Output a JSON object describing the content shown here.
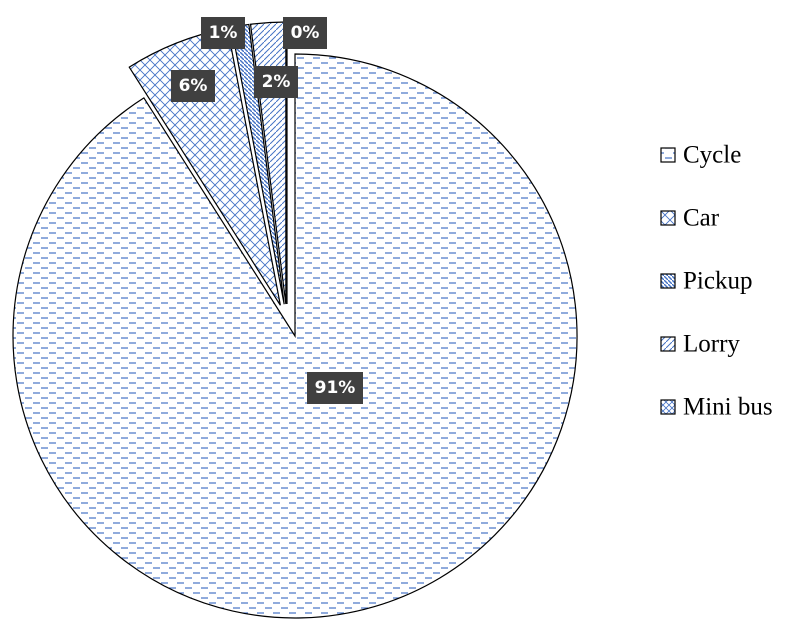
{
  "chart_data": {
    "type": "pie",
    "categories": [
      "Cycle",
      "Car",
      "Pickup",
      "Lorry",
      "Mini bus"
    ],
    "values": [
      91,
      6,
      1,
      2,
      0
    ],
    "value_labels": [
      "91%",
      "6%",
      "1%",
      "2%",
      "0%"
    ],
    "color": "#4472c4",
    "legend": "right"
  }
}
